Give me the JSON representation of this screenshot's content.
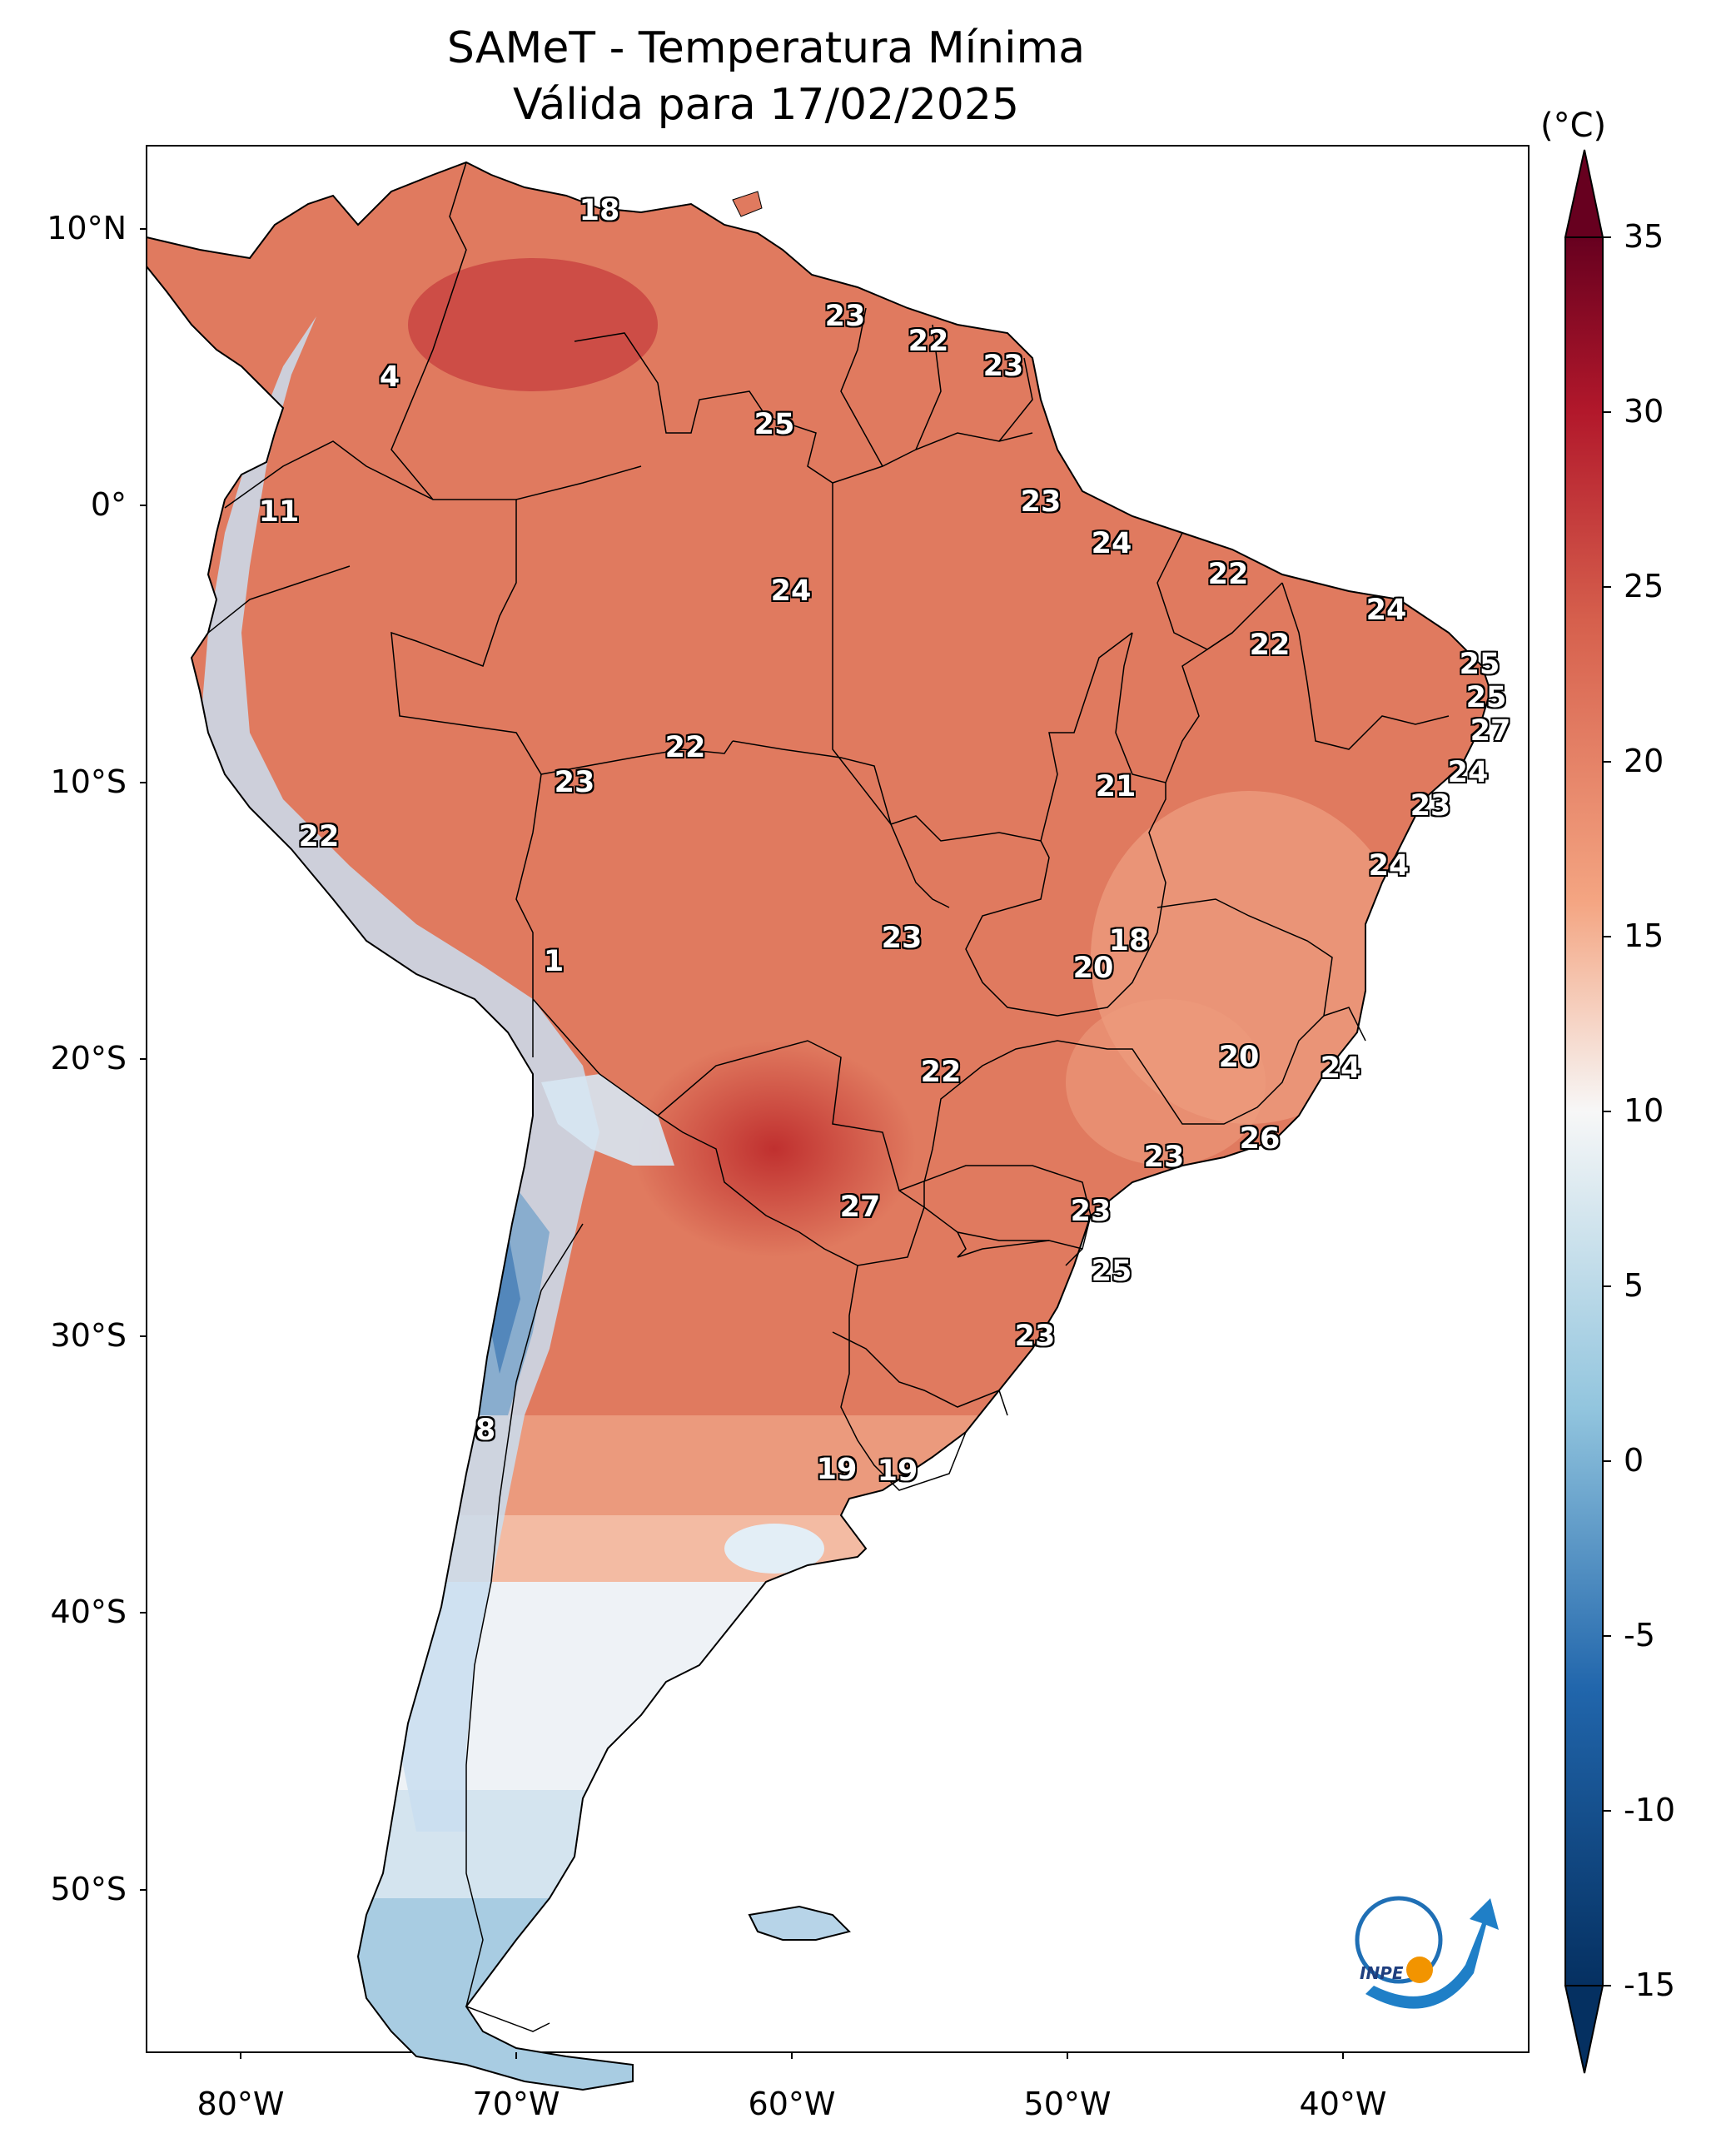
{
  "title": "SAMeT - Temperatura Mínima",
  "subtitle": "Válida para 17/02/2025",
  "colorbar": {
    "unit": "(°C)",
    "ticks": [
      "35",
      "30",
      "25",
      "20",
      "15",
      "10",
      "5",
      "0",
      "-5",
      "-10",
      "-15"
    ],
    "colors": {
      "hot": "#67001f",
      "warm": "#d6604d",
      "mild": "#f4a582",
      "neutral": "#f7f7f7",
      "cool": "#92c5de",
      "cold": "#2166ac",
      "coldest": "#053061"
    }
  },
  "axes": {
    "lat_labels": [
      "10°N",
      "0°",
      "10°S",
      "20°S",
      "30°S",
      "40°S",
      "50°S"
    ],
    "lon_labels": [
      "80°W",
      "70°W",
      "60°W",
      "50°W",
      "40°W"
    ]
  },
  "value_labels": [
    "18",
    "23",
    "22",
    "23",
    "4",
    "25",
    "11",
    "23",
    "24",
    "24",
    "22",
    "22",
    "24",
    "25",
    "25",
    "27",
    "22",
    "23",
    "24",
    "21",
    "22",
    "23",
    "24",
    "1",
    "23",
    "18",
    "20",
    "20",
    "22",
    "24",
    "26",
    "23",
    "27",
    "23",
    "25",
    "23",
    "8",
    "19",
    "19"
  ],
  "logo_text": "INPE"
}
